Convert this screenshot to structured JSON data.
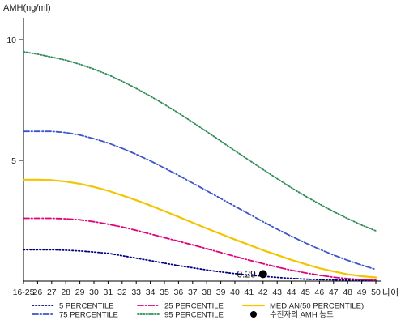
{
  "chart_data": {
    "type": "line",
    "ylabel": "AMH(ng/ml)",
    "xlabel": "나이",
    "ylim": [
      0,
      11
    ],
    "yticks": [
      5,
      10
    ],
    "categories": [
      "16-25",
      "26",
      "27",
      "28",
      "29",
      "30",
      "31",
      "32",
      "33",
      "34",
      "35",
      "36",
      "37",
      "38",
      "39",
      "40",
      "41",
      "42",
      "43",
      "44",
      "45",
      "46",
      "47",
      "48",
      "49",
      "50"
    ],
    "series": [
      {
        "name": "5 PERCENTILE",
        "color": "#000080",
        "dash": "1.5,2.5",
        "values": [
          1.3,
          1.3,
          1.3,
          1.28,
          1.25,
          1.2,
          1.15,
          1.05,
          0.95,
          0.85,
          0.74,
          0.64,
          0.55,
          0.46,
          0.38,
          0.31,
          0.25,
          0.2,
          0.15,
          0.11,
          0.08,
          0.06,
          0.05,
          0.04,
          0.03,
          0.03
        ]
      },
      {
        "name": "25 PERCENTILE",
        "color": "#e0007a",
        "dash": "7,2.5,1.5,2.5",
        "values": [
          2.6,
          2.6,
          2.6,
          2.58,
          2.54,
          2.46,
          2.36,
          2.24,
          2.1,
          1.95,
          1.8,
          1.65,
          1.5,
          1.34,
          1.18,
          1.02,
          0.87,
          0.72,
          0.58,
          0.45,
          0.34,
          0.24,
          0.16,
          0.1,
          0.06,
          0.04
        ]
      },
      {
        "name": "MEDIAN(50 PERCENTILE)",
        "color": "#f2c500",
        "dash": "",
        "values": [
          4.2,
          4.2,
          4.18,
          4.12,
          4.03,
          3.9,
          3.74,
          3.55,
          3.35,
          3.13,
          2.9,
          2.66,
          2.42,
          2.18,
          1.95,
          1.72,
          1.5,
          1.28,
          1.08,
          0.88,
          0.7,
          0.53,
          0.4,
          0.28,
          0.2,
          0.15
        ]
      },
      {
        "name": "75 PERCENTILE",
        "color": "#3a55c8",
        "dash": "7,2.5,1.5,2.5",
        "values": [
          6.2,
          6.2,
          6.2,
          6.15,
          6.05,
          5.9,
          5.72,
          5.5,
          5.25,
          4.98,
          4.68,
          4.38,
          4.06,
          3.74,
          3.42,
          3.1,
          2.78,
          2.46,
          2.15,
          1.86,
          1.58,
          1.32,
          1.08,
          0.86,
          0.66,
          0.48
        ]
      },
      {
        "name": "95 PERCENTILE",
        "color": "#2e8b57",
        "dash": "1.5,2",
        "values": [
          9.5,
          9.4,
          9.28,
          9.15,
          8.98,
          8.78,
          8.55,
          8.28,
          7.98,
          7.66,
          7.32,
          6.96,
          6.58,
          6.19,
          5.8,
          5.4,
          5.01,
          4.62,
          4.24,
          3.87,
          3.52,
          3.19,
          2.88,
          2.59,
          2.32,
          2.08
        ]
      }
    ],
    "patient": {
      "label": "수진자의 AMH 농도",
      "category": "42",
      "value": 0.29,
      "value_label": "0.29",
      "color": "#000000"
    },
    "legend": {
      "position": "bottom",
      "columns": 3
    },
    "grid": false
  }
}
